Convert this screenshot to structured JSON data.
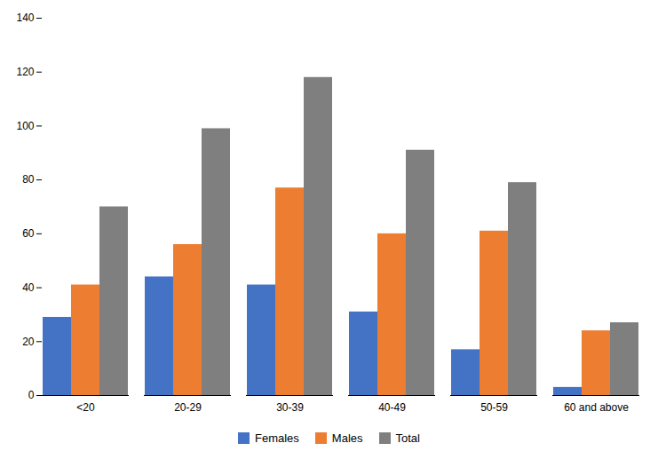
{
  "chart_data": {
    "type": "bar",
    "categories": [
      "<20",
      "20-29",
      "30-39",
      "40-49",
      "50-59",
      "60 and above"
    ],
    "series": [
      {
        "name": "Females",
        "color": "#4472c4",
        "values": [
          29,
          44,
          41,
          31,
          17,
          3
        ]
      },
      {
        "name": "Males",
        "color": "#ed7d31",
        "values": [
          41,
          56,
          77,
          60,
          61,
          24
        ]
      },
      {
        "name": "Total",
        "color": "#7f7f7f",
        "values": [
          70,
          99,
          118,
          91,
          79,
          27
        ]
      }
    ],
    "ylim": [
      0,
      140
    ],
    "yticks": [
      0,
      20,
      40,
      60,
      80,
      100,
      120,
      140
    ],
    "grid": false,
    "legend": "bottom"
  }
}
